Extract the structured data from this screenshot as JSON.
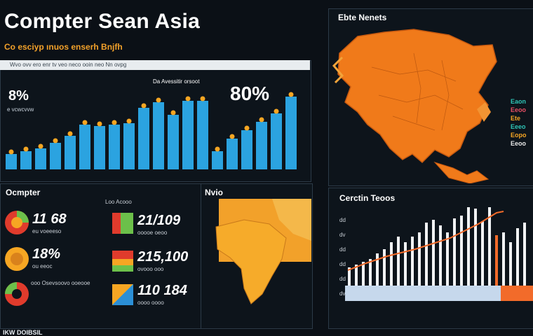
{
  "header": {
    "title": "Compter Sean Asia",
    "subtitle": "Co esciyp ınuos enserh Bnjfh"
  },
  "main_chart": {
    "strip_text": "Wvo ovv ero enr tv veo neco ooin neo Nn ovpg",
    "left_value": "8%",
    "left_caption": "e vcwcvvw",
    "center_caption": "Da Avessitir orsoot",
    "right_value": "80%",
    "accent_color": "#2ba3e0",
    "marker_color": "#f5a623"
  },
  "map_panel": {
    "title": "Ebte Nenets",
    "legend": [
      "Eaon",
      "Eeoo",
      "Ete",
      "Eeeo",
      "Eopo",
      "Eeoo"
    ],
    "legend_colors": [
      "#2ec4b6",
      "#e94f64",
      "#f6a623",
      "#2ec4b6",
      "#f6a623",
      "#e8e8e8"
    ]
  },
  "left_metrics": {
    "title": "Ocmpter",
    "items": [
      {
        "value": "11 68",
        "sub": "eu voeeeso"
      },
      {
        "value": "18%",
        "sub": "ou eeoc"
      },
      {
        "value": "",
        "sub": "ooo Osevsoovo ooeooe"
      }
    ]
  },
  "mid_metrics": {
    "header": "Loo Acooo",
    "items": [
      {
        "value": "21/109",
        "sub": "ooooe oeoo"
      },
      {
        "value": "215,100",
        "sub": "ovooo ooo"
      },
      {
        "value": "110 184",
        "sub": "oooo oooo"
      }
    ]
  },
  "africa_panel": {
    "title": "Nvio"
  },
  "bottom_chart": {
    "title": "Cerctin Teoos",
    "y_ticks": [
      "dd",
      "dv",
      "dd",
      "dd",
      "dd",
      "dv"
    ]
  },
  "footer": {
    "text": "IKW DOIBSIL"
  }
}
